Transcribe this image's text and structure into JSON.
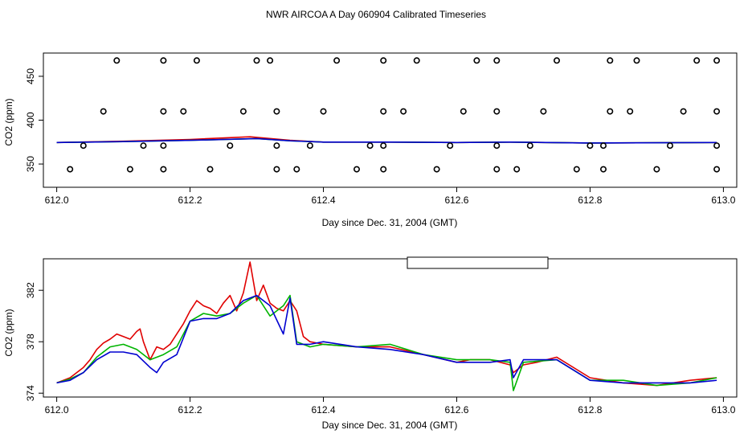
{
  "title": "NWR AIRCOA A  Day 060904  Calibrated Timeseries",
  "colors": {
    "red": "#e00000",
    "green": "#00b400",
    "blue": "#0000d0",
    "axis": "#000000"
  },
  "chart_data": [
    {
      "type": "scatter",
      "name": "top-panel",
      "xlabel": "Day since Dec. 31, 2004 (GMT)",
      "ylabel": "CO2 (ppm)",
      "xlim": [
        611.98,
        613.02
      ],
      "ylim": [
        323.5,
        476.5
      ],
      "xticks": [
        612.0,
        612.2,
        612.4,
        612.6,
        612.8,
        613.0
      ],
      "xtick_labels": [
        "612.0",
        "612.2",
        "612.4",
        "612.6",
        "612.8",
        "613.0"
      ],
      "yticks": [
        350,
        400,
        450
      ],
      "ytick_labels": [
        "350",
        "400",
        "450"
      ],
      "points": [
        [
          612.09,
          468
        ],
        [
          612.16,
          468
        ],
        [
          612.21,
          468
        ],
        [
          612.3,
          468
        ],
        [
          612.32,
          468
        ],
        [
          612.42,
          468
        ],
        [
          612.49,
          468
        ],
        [
          612.54,
          468
        ],
        [
          612.63,
          468
        ],
        [
          612.66,
          468
        ],
        [
          612.75,
          468
        ],
        [
          612.83,
          468
        ],
        [
          612.87,
          468
        ],
        [
          612.96,
          468
        ],
        [
          612.99,
          468
        ],
        [
          612.07,
          410
        ],
        [
          612.16,
          410
        ],
        [
          612.19,
          410
        ],
        [
          612.28,
          410
        ],
        [
          612.33,
          410
        ],
        [
          612.4,
          410
        ],
        [
          612.49,
          410
        ],
        [
          612.52,
          410
        ],
        [
          612.61,
          410
        ],
        [
          612.66,
          410
        ],
        [
          612.73,
          410
        ],
        [
          612.83,
          410
        ],
        [
          612.86,
          410
        ],
        [
          612.94,
          410
        ],
        [
          612.99,
          410
        ],
        [
          612.04,
          371
        ],
        [
          612.13,
          371
        ],
        [
          612.16,
          371
        ],
        [
          612.26,
          371
        ],
        [
          612.33,
          371
        ],
        [
          612.38,
          371
        ],
        [
          612.47,
          371
        ],
        [
          612.49,
          371
        ],
        [
          612.59,
          371
        ],
        [
          612.66,
          371
        ],
        [
          612.71,
          371
        ],
        [
          612.8,
          371
        ],
        [
          612.82,
          371
        ],
        [
          612.92,
          371
        ],
        [
          612.99,
          371
        ],
        [
          612.02,
          344
        ],
        [
          612.11,
          344
        ],
        [
          612.16,
          344
        ],
        [
          612.23,
          344
        ],
        [
          612.33,
          344
        ],
        [
          612.36,
          344
        ],
        [
          612.45,
          344
        ],
        [
          612.49,
          344
        ],
        [
          612.57,
          344
        ],
        [
          612.66,
          344
        ],
        [
          612.69,
          344
        ],
        [
          612.78,
          344
        ],
        [
          612.82,
          344
        ],
        [
          612.9,
          344
        ],
        [
          612.99,
          344
        ]
      ],
      "series": [
        {
          "name": "red",
          "x": [
            612.0,
            612.1,
            612.2,
            612.29,
            612.35,
            612.4,
            612.5,
            612.6,
            612.68,
            612.8,
            612.99
          ],
          "y": [
            374.5,
            376,
            378,
            381,
            377,
            375,
            375,
            374.5,
            375,
            374,
            374.5
          ]
        },
        {
          "name": "green",
          "x": [
            612.0,
            612.1,
            612.2,
            612.3,
            612.35,
            612.4,
            612.5,
            612.6,
            612.68,
            612.8,
            612.99
          ],
          "y": [
            374.5,
            375.5,
            377,
            379,
            376.5,
            375,
            375,
            374.5,
            375,
            374,
            374.5
          ]
        },
        {
          "name": "blue",
          "x": [
            612.0,
            612.1,
            612.2,
            612.3,
            612.35,
            612.4,
            612.5,
            612.6,
            612.68,
            612.8,
            612.99
          ],
          "y": [
            374.5,
            375.5,
            377,
            379,
            376.5,
            375,
            375,
            374.5,
            375,
            374,
            374.5
          ]
        }
      ]
    },
    {
      "type": "line",
      "name": "bottom-panel",
      "xlabel": "Day since Dec. 31, 2004 (GMT)",
      "ylabel": "CO2 (ppm)",
      "xlim": [
        611.98,
        613.02
      ],
      "ylim": [
        373.7,
        384.45
      ],
      "xticks": [
        612.0,
        612.2,
        612.4,
        612.6,
        612.8,
        613.0
      ],
      "xtick_labels": [
        "612.0",
        "612.2",
        "612.4",
        "612.6",
        "612.8",
        "613.0"
      ],
      "yticks": [
        374,
        378,
        382
      ],
      "ytick_labels": [
        "374",
        "378",
        "382"
      ],
      "legend_position": "top-center",
      "series": [
        {
          "name": "red",
          "x": [
            612.0,
            612.01,
            612.02,
            612.03,
            612.04,
            612.05,
            612.06,
            612.07,
            612.08,
            612.09,
            612.1,
            612.11,
            612.12,
            612.125,
            612.13,
            612.14,
            612.15,
            612.16,
            612.17,
            612.18,
            612.19,
            612.2,
            612.21,
            612.22,
            612.23,
            612.24,
            612.25,
            612.26,
            612.27,
            612.28,
            612.29,
            612.3,
            612.31,
            612.32,
            612.33,
            612.34,
            612.35,
            612.36,
            612.37,
            612.38,
            612.4,
            612.45,
            612.5,
            612.55,
            612.6,
            612.62,
            612.65,
            612.68,
            612.685,
            612.7,
            612.72,
            612.75,
            612.8,
            612.85,
            612.9,
            612.95,
            612.99
          ],
          "y": [
            374.8,
            375.0,
            375.2,
            375.6,
            376.0,
            376.6,
            377.4,
            377.9,
            378.2,
            378.6,
            378.4,
            378.2,
            378.8,
            379.0,
            378.0,
            376.6,
            377.6,
            377.4,
            377.8,
            378.6,
            379.4,
            380.4,
            381.2,
            380.8,
            380.6,
            380.2,
            381.0,
            381.6,
            380.4,
            381.8,
            384.2,
            381.2,
            382.4,
            381.0,
            380.6,
            380.4,
            381.2,
            380.4,
            378.4,
            378.0,
            377.8,
            377.6,
            377.6,
            377.0,
            376.4,
            376.6,
            376.6,
            376.2,
            375.6,
            376.2,
            376.4,
            376.8,
            375.2,
            374.8,
            374.6,
            375.0,
            375.2
          ]
        },
        {
          "name": "green",
          "x": [
            612.0,
            612.02,
            612.04,
            612.06,
            612.08,
            612.1,
            612.12,
            612.14,
            612.16,
            612.18,
            612.2,
            612.22,
            612.24,
            612.26,
            612.28,
            612.3,
            612.32,
            612.34,
            612.35,
            612.36,
            612.38,
            612.4,
            612.45,
            612.5,
            612.55,
            612.6,
            612.65,
            612.68,
            612.685,
            612.7,
            612.75,
            612.8,
            612.85,
            612.9,
            612.95,
            612.99
          ],
          "y": [
            374.8,
            375.1,
            375.6,
            376.8,
            377.6,
            377.8,
            377.4,
            376.6,
            377.0,
            377.6,
            379.6,
            380.2,
            380.0,
            380.2,
            381.0,
            381.6,
            380.0,
            380.8,
            381.6,
            378.0,
            377.6,
            377.8,
            377.6,
            377.8,
            377.0,
            376.6,
            376.6,
            376.4,
            374.2,
            376.4,
            376.6,
            375.0,
            375.0,
            374.6,
            374.8,
            375.2
          ]
        },
        {
          "name": "blue",
          "x": [
            612.0,
            612.02,
            612.04,
            612.06,
            612.08,
            612.1,
            612.12,
            612.14,
            612.15,
            612.16,
            612.18,
            612.2,
            612.22,
            612.24,
            612.26,
            612.28,
            612.3,
            612.32,
            612.34,
            612.35,
            612.36,
            612.38,
            612.4,
            612.45,
            612.5,
            612.55,
            612.6,
            612.65,
            612.68,
            612.685,
            612.7,
            612.75,
            612.8,
            612.85,
            612.9,
            612.95,
            612.99
          ],
          "y": [
            374.8,
            375.0,
            375.6,
            376.6,
            377.2,
            377.2,
            377.0,
            376.0,
            375.6,
            376.4,
            377.0,
            379.6,
            379.8,
            379.8,
            380.2,
            381.2,
            381.6,
            380.8,
            378.6,
            381.4,
            377.8,
            377.8,
            378.0,
            377.6,
            377.4,
            377.0,
            376.4,
            376.4,
            376.6,
            375.2,
            376.6,
            376.6,
            375.0,
            374.8,
            374.8,
            374.8,
            375.0
          ]
        }
      ]
    }
  ]
}
